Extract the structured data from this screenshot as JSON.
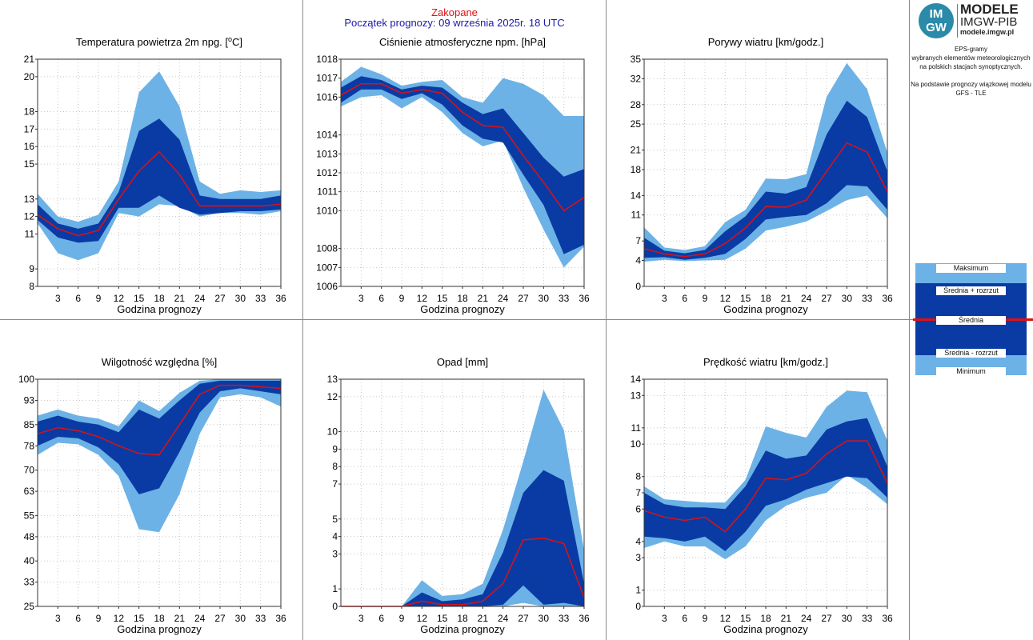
{
  "header": {
    "city": "Zakopane",
    "start": "Początek prognozy: 09 września 2025r. 18 UTC"
  },
  "brand": {
    "logo_top": "IM",
    "logo_bottom": "GW",
    "models": "MODELE",
    "org": "IMGW-PIB",
    "url": "modele.imgw.pl"
  },
  "description": {
    "line1": "EPS-gramy",
    "line2": "wybranych elementów meteorologicznych",
    "line3": "na polskich stacjach  synoptycznych.",
    "line4": "Na podstawie prognozy wiązkowej modelu",
    "line5": "GFS - TLE"
  },
  "legend": {
    "max": "Maksimum",
    "mean_plus": "Średnia + rozrzut",
    "mean": "Średnia",
    "mean_minus": "Średnia - rozrzut",
    "min": "Minimum"
  },
  "colors": {
    "range": "#6cb2e6",
    "spread": "#0a3ba4",
    "mean": "#e01010",
    "grid": "#c8c8c8"
  },
  "chart_data": [
    {
      "type": "area",
      "title": "Temperatura powietrza 2m npg. [°C]",
      "xlabel": "Godzina prognozy",
      "ylabel": "",
      "x": [
        0,
        3,
        6,
        9,
        12,
        15,
        18,
        21,
        24,
        27,
        30,
        33,
        36
      ],
      "xticks": [
        3,
        6,
        9,
        12,
        15,
        18,
        21,
        24,
        27,
        30,
        33,
        36
      ],
      "xlim": [
        0,
        36
      ],
      "ylim": [
        8,
        21
      ],
      "yticks": [
        8,
        9,
        11,
        12,
        13,
        15,
        16,
        17,
        18,
        20,
        21
      ],
      "min": [
        11.6,
        9.9,
        9.5,
        9.9,
        12.2,
        12.0,
        12.7,
        12.6,
        12.0,
        12.2,
        12.2,
        12.1,
        12.3
      ],
      "mean_minus": [
        11.8,
        10.8,
        10.5,
        10.6,
        12.5,
        12.5,
        13.2,
        12.5,
        12.1,
        12.2,
        12.3,
        12.3,
        12.4
      ],
      "mean": [
        12.1,
        11.3,
        10.9,
        11.2,
        13.0,
        14.6,
        15.7,
        14.4,
        12.6,
        12.6,
        12.6,
        12.6,
        12.7
      ],
      "mean_plus": [
        12.7,
        11.6,
        11.3,
        11.6,
        13.4,
        16.9,
        17.6,
        16.4,
        13.2,
        13.0,
        13.0,
        13.0,
        13.2
      ],
      "max": [
        13.3,
        12.0,
        11.7,
        12.1,
        14.0,
        19.1,
        20.3,
        18.3,
        14.0,
        13.3,
        13.5,
        13.4,
        13.5
      ]
    },
    {
      "type": "area",
      "title": "Ciśnienie atmosferyczne npm. [hPa]",
      "xlabel": "Godzina prognozy",
      "ylabel": "",
      "x": [
        0,
        3,
        6,
        9,
        12,
        15,
        18,
        21,
        24,
        27,
        30,
        33,
        36
      ],
      "xticks": [
        3,
        6,
        9,
        12,
        15,
        18,
        21,
        24,
        27,
        30,
        33,
        36
      ],
      "xlim": [
        0,
        36
      ],
      "ylim": [
        1006,
        1018
      ],
      "yticks": [
        1006,
        1007,
        1008,
        1010,
        1011,
        1012,
        1013,
        1014,
        1016,
        1017,
        1018
      ],
      "min": [
        1015.5,
        1016.0,
        1016.1,
        1015.4,
        1016.0,
        1015.2,
        1014.1,
        1013.4,
        1013.7,
        1011.2,
        1009.0,
        1007.0,
        1008.1
      ],
      "mean_minus": [
        1015.7,
        1016.4,
        1016.4,
        1015.9,
        1016.2,
        1015.6,
        1014.5,
        1013.8,
        1013.6,
        1011.9,
        1010.3,
        1007.7,
        1008.2
      ],
      "mean": [
        1016.1,
        1016.7,
        1016.7,
        1016.2,
        1016.4,
        1016.2,
        1015.2,
        1014.5,
        1014.4,
        1012.9,
        1011.5,
        1010.0,
        1010.7
      ],
      "mean_plus": [
        1016.5,
        1017.1,
        1016.9,
        1016.4,
        1016.6,
        1016.5,
        1015.7,
        1015.1,
        1015.4,
        1014.1,
        1012.8,
        1011.8,
        1012.2
      ],
      "max": [
        1016.8,
        1017.6,
        1017.2,
        1016.6,
        1016.8,
        1016.9,
        1016.0,
        1015.7,
        1017.0,
        1016.7,
        1016.1,
        1015.0,
        1015.0
      ]
    },
    {
      "type": "area",
      "title": "Porywy wiatru [km/godz.]",
      "xlabel": "Godzina prognozy",
      "ylabel": "",
      "x": [
        0,
        3,
        6,
        9,
        12,
        15,
        18,
        21,
        24,
        27,
        30,
        33,
        36
      ],
      "xticks": [
        3,
        6,
        9,
        12,
        15,
        18,
        21,
        24,
        27,
        30,
        33,
        36
      ],
      "xlim": [
        0,
        36
      ],
      "ylim": [
        0,
        35
      ],
      "yticks": [
        0,
        4,
        7,
        11,
        14,
        18,
        21,
        25,
        28,
        32,
        35
      ],
      "min": [
        3.8,
        4.1,
        3.9,
        4.0,
        4.1,
        5.8,
        8.6,
        9.2,
        10.0,
        11.6,
        13.3,
        14.0,
        10.5
      ],
      "mean_minus": [
        4.4,
        4.5,
        4.1,
        4.4,
        5.0,
        7.3,
        10.3,
        10.7,
        11.0,
        12.8,
        15.6,
        15.4,
        11.8
      ],
      "mean": [
        5.8,
        5.0,
        4.6,
        5.0,
        6.6,
        9.0,
        12.3,
        12.2,
        13.3,
        17.7,
        22.1,
        20.7,
        14.6
      ],
      "mean_plus": [
        7.5,
        5.5,
        5.1,
        5.6,
        8.5,
        10.8,
        14.6,
        14.3,
        15.3,
        23.4,
        28.6,
        26.1,
        17.7
      ],
      "max": [
        9.1,
        6.0,
        5.6,
        6.2,
        9.9,
        11.8,
        16.6,
        16.5,
        17.3,
        29.2,
        34.4,
        30.4,
        20.6
      ]
    },
    {
      "type": "area",
      "title": "Wilgotność względna [%]",
      "xlabel": "Godzina prognozy",
      "ylabel": "",
      "x": [
        0,
        3,
        6,
        9,
        12,
        15,
        18,
        21,
        24,
        27,
        30,
        33,
        36
      ],
      "xticks": [
        3,
        6,
        9,
        12,
        15,
        18,
        21,
        24,
        27,
        30,
        33,
        36
      ],
      "xlim": [
        0,
        36
      ],
      "ylim": [
        25,
        100
      ],
      "yticks": [
        25,
        33,
        40,
        48,
        55,
        63,
        70,
        78,
        85,
        93,
        100
      ],
      "min": [
        75.0,
        79.0,
        78.5,
        75.0,
        68.0,
        50.5,
        49.5,
        62.0,
        82.0,
        94.0,
        95.0,
        94.0,
        91.0
      ],
      "mean_minus": [
        78.0,
        81.0,
        80.5,
        77.5,
        72.0,
        62.0,
        64.0,
        76.0,
        89.0,
        96.0,
        97.0,
        96.0,
        95.0
      ],
      "mean": [
        82.0,
        84.0,
        83.0,
        81.0,
        78.0,
        75.5,
        75.0,
        85.0,
        95.0,
        98.0,
        98.0,
        97.5,
        97.0
      ],
      "mean_plus": [
        86.0,
        88.0,
        86.0,
        85.0,
        82.5,
        90.0,
        87.0,
        93.0,
        98.5,
        99.5,
        99.5,
        99.5,
        99.5
      ],
      "max": [
        88.0,
        90.0,
        88.0,
        87.0,
        84.5,
        93.0,
        89.5,
        95.5,
        99.5,
        100.0,
        100.0,
        100.0,
        100.0
      ]
    },
    {
      "type": "area",
      "title": "Opad [mm]",
      "xlabel": "Godzina prognozy",
      "ylabel": "",
      "x": [
        0,
        3,
        6,
        9,
        12,
        15,
        18,
        21,
        24,
        27,
        30,
        33,
        36
      ],
      "xticks": [
        3,
        6,
        9,
        12,
        15,
        18,
        21,
        24,
        27,
        30,
        33,
        36
      ],
      "xlim": [
        0,
        36
      ],
      "ylim": [
        0,
        13
      ],
      "yticks": [
        0,
        1,
        3,
        4,
        5,
        7,
        8,
        9,
        10,
        12,
        13
      ],
      "min": [
        0,
        0,
        0,
        0,
        0,
        0,
        0,
        0,
        0,
        0.2,
        0,
        0,
        0
      ],
      "mean_minus": [
        0,
        0,
        0,
        0,
        0,
        0,
        0,
        0,
        0.1,
        1.2,
        0.1,
        0.2,
        0
      ],
      "mean": [
        0,
        0,
        0,
        0,
        0.3,
        0.1,
        0.1,
        0.3,
        1.3,
        3.8,
        3.9,
        3.6,
        0.5
      ],
      "mean_plus": [
        0,
        0,
        0,
        0,
        0.8,
        0.3,
        0.4,
        0.7,
        3.1,
        6.5,
        7.8,
        7.2,
        1.3
      ],
      "max": [
        0,
        0,
        0,
        0,
        1.5,
        0.6,
        0.7,
        1.3,
        4.4,
        8.3,
        12.4,
        10.1,
        3.2
      ]
    },
    {
      "type": "area",
      "title": "Prędkość wiatru [km/godz.]",
      "xlabel": "Godzina prognozy",
      "ylabel": "",
      "x": [
        0,
        3,
        6,
        9,
        12,
        15,
        18,
        21,
        24,
        27,
        30,
        33,
        36
      ],
      "xticks": [
        3,
        6,
        9,
        12,
        15,
        18,
        21,
        24,
        27,
        30,
        33,
        36
      ],
      "xlim": [
        0,
        36
      ],
      "ylim": [
        0,
        14
      ],
      "yticks": [
        0,
        1,
        3,
        4,
        6,
        7,
        8,
        10,
        11,
        13,
        14
      ],
      "min": [
        3.6,
        4.0,
        3.7,
        3.7,
        2.9,
        3.7,
        5.3,
        6.2,
        6.7,
        7.0,
        8.1,
        7.3,
        6.3
      ],
      "mean_minus": [
        4.3,
        4.2,
        4.0,
        4.3,
        3.4,
        4.6,
        6.2,
        6.6,
        7.2,
        7.6,
        8.0,
        7.9,
        6.7
      ],
      "mean": [
        5.9,
        5.5,
        5.3,
        5.5,
        4.6,
        6.0,
        7.9,
        7.8,
        8.2,
        9.4,
        10.2,
        10.2,
        7.6
      ],
      "mean_plus": [
        7.0,
        6.3,
        6.1,
        6.1,
        6.0,
        7.4,
        9.6,
        9.1,
        9.3,
        10.9,
        11.4,
        11.6,
        8.6
      ],
      "max": [
        7.4,
        6.6,
        6.5,
        6.4,
        6.4,
        7.8,
        11.1,
        10.7,
        10.4,
        12.3,
        13.3,
        13.2,
        10.2
      ]
    }
  ]
}
